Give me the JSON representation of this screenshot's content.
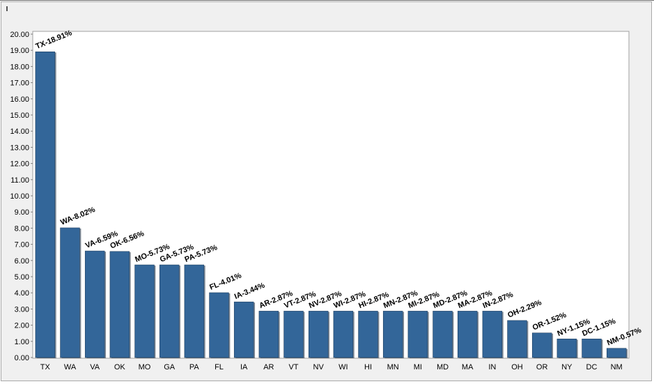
{
  "chart_data": {
    "type": "bar",
    "title": "",
    "xlabel": "",
    "ylabel": "",
    "ylim": [
      0,
      20
    ],
    "ytick_step": 1,
    "ytick_labels": [
      "0.00",
      "1.00",
      "2.00",
      "3.00",
      "4.00",
      "5.00",
      "6.00",
      "7.00",
      "8.00",
      "9.00",
      "10.00",
      "11.00",
      "12.00",
      "13.00",
      "14.00",
      "15.00",
      "16.00",
      "17.00",
      "18.00",
      "19.00",
      "20.00"
    ],
    "grid": false,
    "legend": "none",
    "bar_color": "#336699",
    "categories": [
      "TX",
      "WA",
      "VA",
      "OK",
      "MO",
      "GA",
      "PA",
      "FL",
      "IA",
      "AR",
      "VT",
      "NV",
      "WI",
      "HI",
      "MN",
      "MI",
      "MD",
      "MA",
      "IN",
      "OH",
      "OR",
      "NY",
      "DC",
      "NM"
    ],
    "values": [
      18.91,
      8.02,
      6.59,
      6.56,
      5.73,
      5.73,
      5.73,
      4.01,
      3.44,
      2.87,
      2.87,
      2.87,
      2.87,
      2.87,
      2.87,
      2.87,
      2.87,
      2.87,
      2.87,
      2.29,
      1.52,
      1.15,
      1.15,
      0.57
    ],
    "data_labels": [
      "TX-18.91%",
      "WA-8.02%",
      "VA-6.59%",
      "OK-6.56%",
      "MO-5.73%",
      "GA-5.73%",
      "PA-5.73%",
      "FL-4.01%",
      "IA-3.44%",
      "AR-2.87%",
      "VT-2.87%",
      "NV-2.87%",
      "WI-2.87%",
      "HI-2.87%",
      "MN-2.87%",
      "MI-2.87%",
      "MD-2.87%",
      "MA-2.87%",
      "IN-2.87%",
      "OH-2.29%",
      "OR-1.52%",
      "NY-1.15%",
      "DC-1.15%",
      "NM-0.57%"
    ]
  }
}
